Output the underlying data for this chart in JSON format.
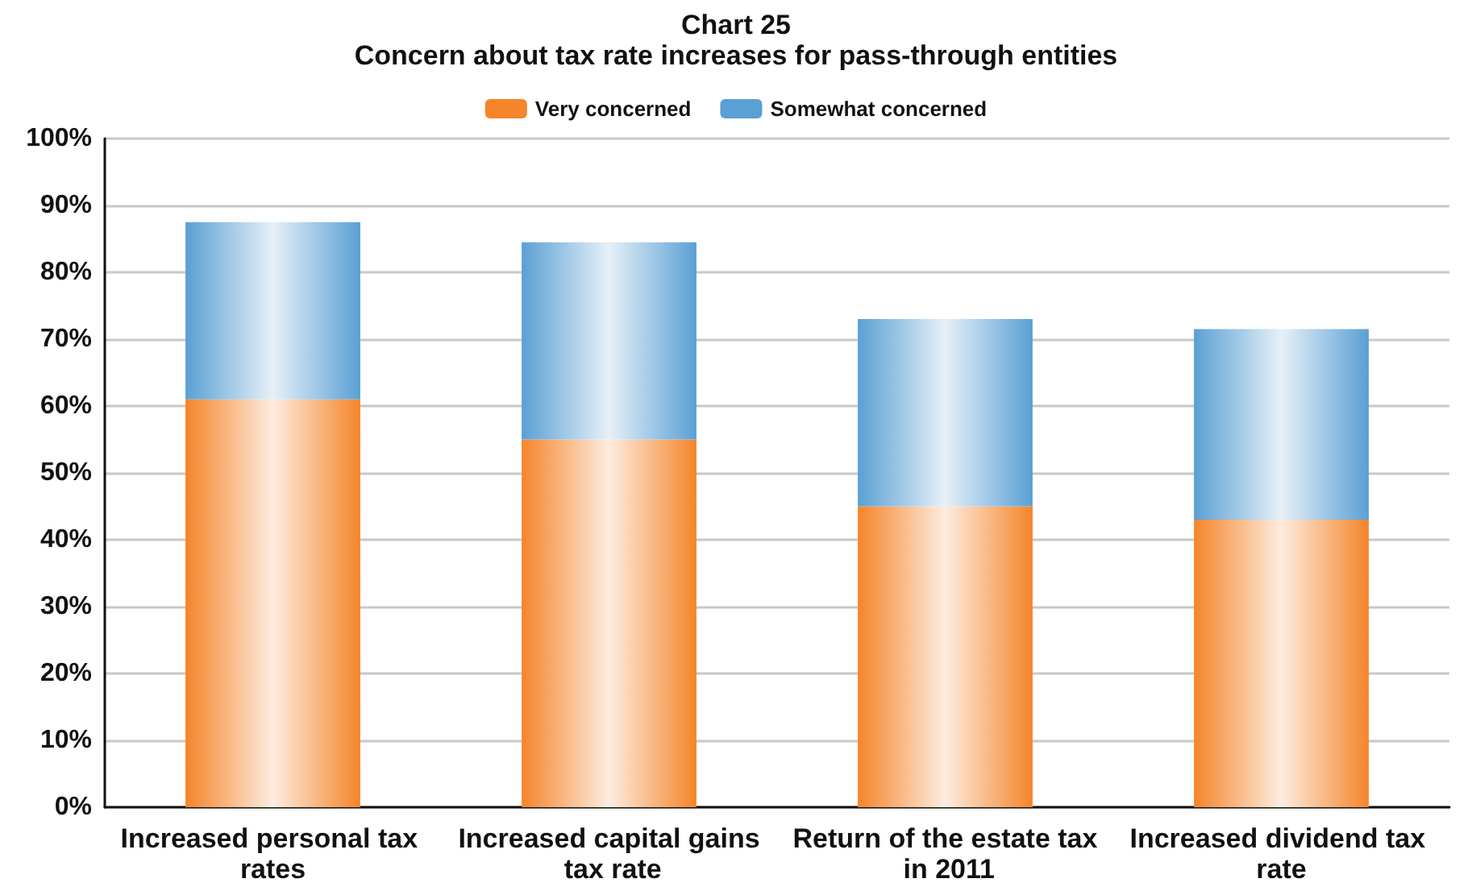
{
  "chart_data": {
    "type": "bar",
    "title": "Chart 25",
    "subtitle": "Concern about tax rate increases for pass-through entities",
    "categories": [
      "Increased personal tax rates",
      "Increased capital gains tax rate",
      "Return of the estate tax in 2011",
      "Increased dividend tax rate"
    ],
    "series": [
      {
        "name": "Very concerned",
        "color": "#f5852a",
        "values": [
          61,
          55,
          45,
          43
        ]
      },
      {
        "name": "Somewhat concerned",
        "color": "#5aa0d4",
        "values": [
          26.5,
          29.5,
          28,
          28.5
        ]
      }
    ],
    "stacked": true,
    "ylim": [
      0,
      100
    ],
    "yticks": [
      {
        "value": 0,
        "label": "0%"
      },
      {
        "value": 10,
        "label": "10%"
      },
      {
        "value": 20,
        "label": "20%"
      },
      {
        "value": 30,
        "label": "30%"
      },
      {
        "value": 40,
        "label": "40%"
      },
      {
        "value": 50,
        "label": "50%"
      },
      {
        "value": 60,
        "label": "60%"
      },
      {
        "value": 70,
        "label": "70%"
      },
      {
        "value": 80,
        "label": "80%"
      },
      {
        "value": 90,
        "label": "90%"
      },
      {
        "value": 100,
        "label": "100%"
      }
    ],
    "grid": "y",
    "legend": "top"
  }
}
